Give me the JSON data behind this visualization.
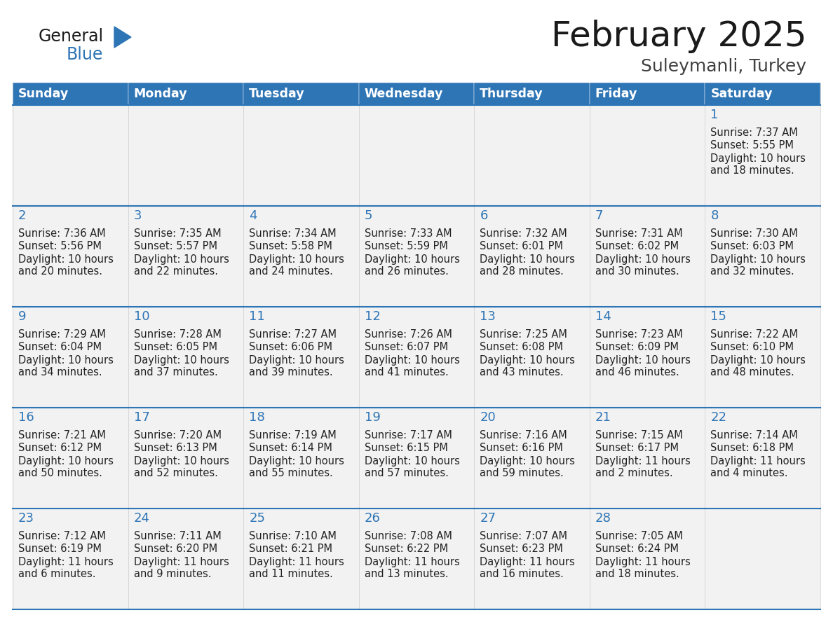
{
  "title": "February 2025",
  "subtitle": "Suleymanli, Turkey",
  "days_of_week": [
    "Sunday",
    "Monday",
    "Tuesday",
    "Wednesday",
    "Thursday",
    "Friday",
    "Saturday"
  ],
  "header_bg": "#2E75B6",
  "header_text": "#FFFFFF",
  "cell_bg": "#F2F2F2",
  "cell_bg_alt": "#FFFFFF",
  "border_color": "#2E75B6",
  "title_color": "#1a1a1a",
  "subtitle_color": "#404040",
  "day_number_color": "#2E75B6",
  "cell_text_color": "#222222",
  "logo_general_color": "#1a1a1a",
  "logo_blue_color": "#2E75B6",
  "calendar_data": [
    [
      null,
      null,
      null,
      null,
      null,
      null,
      {
        "day": 1,
        "sunrise": "7:37 AM",
        "sunset": "5:55 PM",
        "daylight_line1": "Daylight: 10 hours",
        "daylight_line2": "and 18 minutes."
      }
    ],
    [
      {
        "day": 2,
        "sunrise": "7:36 AM",
        "sunset": "5:56 PM",
        "daylight_line1": "Daylight: 10 hours",
        "daylight_line2": "and 20 minutes."
      },
      {
        "day": 3,
        "sunrise": "7:35 AM",
        "sunset": "5:57 PM",
        "daylight_line1": "Daylight: 10 hours",
        "daylight_line2": "and 22 minutes."
      },
      {
        "day": 4,
        "sunrise": "7:34 AM",
        "sunset": "5:58 PM",
        "daylight_line1": "Daylight: 10 hours",
        "daylight_line2": "and 24 minutes."
      },
      {
        "day": 5,
        "sunrise": "7:33 AM",
        "sunset": "5:59 PM",
        "daylight_line1": "Daylight: 10 hours",
        "daylight_line2": "and 26 minutes."
      },
      {
        "day": 6,
        "sunrise": "7:32 AM",
        "sunset": "6:01 PM",
        "daylight_line1": "Daylight: 10 hours",
        "daylight_line2": "and 28 minutes."
      },
      {
        "day": 7,
        "sunrise": "7:31 AM",
        "sunset": "6:02 PM",
        "daylight_line1": "Daylight: 10 hours",
        "daylight_line2": "and 30 minutes."
      },
      {
        "day": 8,
        "sunrise": "7:30 AM",
        "sunset": "6:03 PM",
        "daylight_line1": "Daylight: 10 hours",
        "daylight_line2": "and 32 minutes."
      }
    ],
    [
      {
        "day": 9,
        "sunrise": "7:29 AM",
        "sunset": "6:04 PM",
        "daylight_line1": "Daylight: 10 hours",
        "daylight_line2": "and 34 minutes."
      },
      {
        "day": 10,
        "sunrise": "7:28 AM",
        "sunset": "6:05 PM",
        "daylight_line1": "Daylight: 10 hours",
        "daylight_line2": "and 37 minutes."
      },
      {
        "day": 11,
        "sunrise": "7:27 AM",
        "sunset": "6:06 PM",
        "daylight_line1": "Daylight: 10 hours",
        "daylight_line2": "and 39 minutes."
      },
      {
        "day": 12,
        "sunrise": "7:26 AM",
        "sunset": "6:07 PM",
        "daylight_line1": "Daylight: 10 hours",
        "daylight_line2": "and 41 minutes."
      },
      {
        "day": 13,
        "sunrise": "7:25 AM",
        "sunset": "6:08 PM",
        "daylight_line1": "Daylight: 10 hours",
        "daylight_line2": "and 43 minutes."
      },
      {
        "day": 14,
        "sunrise": "7:23 AM",
        "sunset": "6:09 PM",
        "daylight_line1": "Daylight: 10 hours",
        "daylight_line2": "and 46 minutes."
      },
      {
        "day": 15,
        "sunrise": "7:22 AM",
        "sunset": "6:10 PM",
        "daylight_line1": "Daylight: 10 hours",
        "daylight_line2": "and 48 minutes."
      }
    ],
    [
      {
        "day": 16,
        "sunrise": "7:21 AM",
        "sunset": "6:12 PM",
        "daylight_line1": "Daylight: 10 hours",
        "daylight_line2": "and 50 minutes."
      },
      {
        "day": 17,
        "sunrise": "7:20 AM",
        "sunset": "6:13 PM",
        "daylight_line1": "Daylight: 10 hours",
        "daylight_line2": "and 52 minutes."
      },
      {
        "day": 18,
        "sunrise": "7:19 AM",
        "sunset": "6:14 PM",
        "daylight_line1": "Daylight: 10 hours",
        "daylight_line2": "and 55 minutes."
      },
      {
        "day": 19,
        "sunrise": "7:17 AM",
        "sunset": "6:15 PM",
        "daylight_line1": "Daylight: 10 hours",
        "daylight_line2": "and 57 minutes."
      },
      {
        "day": 20,
        "sunrise": "7:16 AM",
        "sunset": "6:16 PM",
        "daylight_line1": "Daylight: 10 hours",
        "daylight_line2": "and 59 minutes."
      },
      {
        "day": 21,
        "sunrise": "7:15 AM",
        "sunset": "6:17 PM",
        "daylight_line1": "Daylight: 11 hours",
        "daylight_line2": "and 2 minutes."
      },
      {
        "day": 22,
        "sunrise": "7:14 AM",
        "sunset": "6:18 PM",
        "daylight_line1": "Daylight: 11 hours",
        "daylight_line2": "and 4 minutes."
      }
    ],
    [
      {
        "day": 23,
        "sunrise": "7:12 AM",
        "sunset": "6:19 PM",
        "daylight_line1": "Daylight: 11 hours",
        "daylight_line2": "and 6 minutes."
      },
      {
        "day": 24,
        "sunrise": "7:11 AM",
        "sunset": "6:20 PM",
        "daylight_line1": "Daylight: 11 hours",
        "daylight_line2": "and 9 minutes."
      },
      {
        "day": 25,
        "sunrise": "7:10 AM",
        "sunset": "6:21 PM",
        "daylight_line1": "Daylight: 11 hours",
        "daylight_line2": "and 11 minutes."
      },
      {
        "day": 26,
        "sunrise": "7:08 AM",
        "sunset": "6:22 PM",
        "daylight_line1": "Daylight: 11 hours",
        "daylight_line2": "and 13 minutes."
      },
      {
        "day": 27,
        "sunrise": "7:07 AM",
        "sunset": "6:23 PM",
        "daylight_line1": "Daylight: 11 hours",
        "daylight_line2": "and 16 minutes."
      },
      {
        "day": 28,
        "sunrise": "7:05 AM",
        "sunset": "6:24 PM",
        "daylight_line1": "Daylight: 11 hours",
        "daylight_line2": "and 18 minutes."
      },
      null
    ]
  ],
  "figsize": [
    11.88,
    9.18
  ],
  "dpi": 100
}
